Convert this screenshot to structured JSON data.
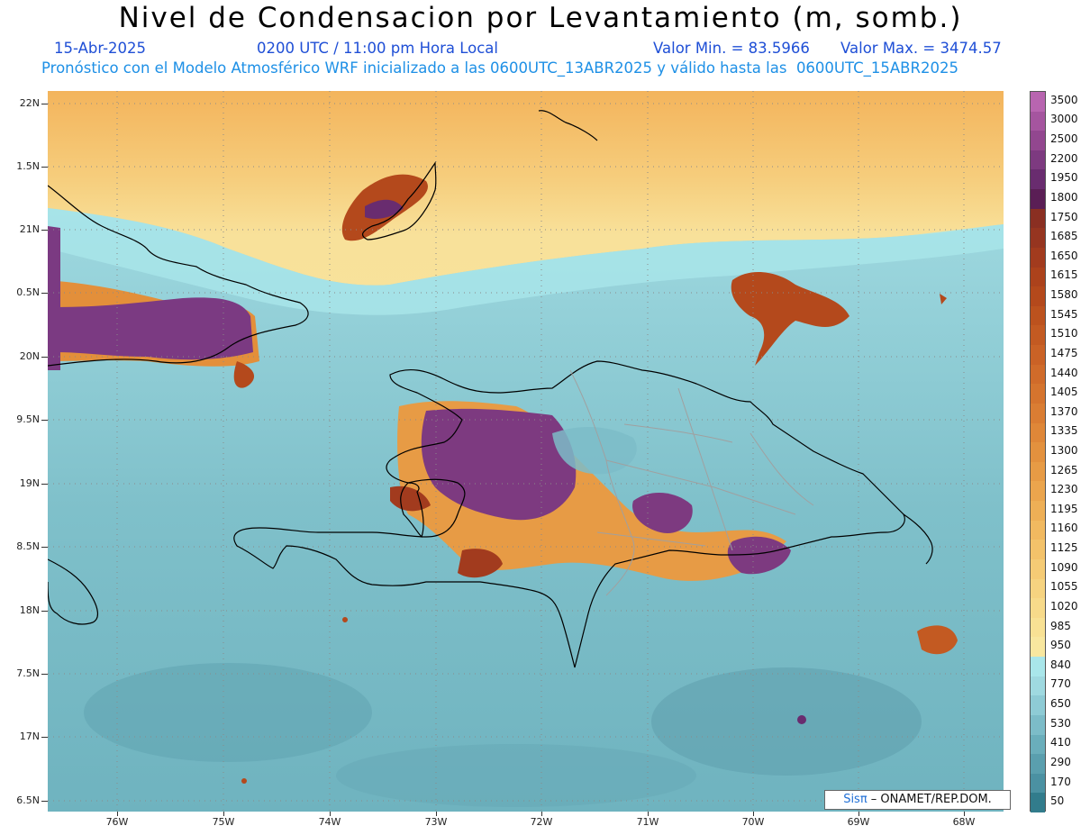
{
  "header": {
    "title": "Nivel de Condensacion por Levantamiento (m, somb.)",
    "date": "15-Abr-2025",
    "time": "0200 UTC / 11:00 pm Hora Local",
    "min_label": "Valor Min. = 83.5966",
    "max_label": "Valor Max. = 3474.57",
    "forecast_line": "Pronóstico con el Modelo Atmosférico WRF inicializado a las 0600UTC_13ABR2025 y válido hasta las  0600UTC_15ABR2025"
  },
  "lat_labels": [
    "22N",
    "1.5N",
    "21N",
    "0.5N",
    "20N",
    "9.5N",
    "19N",
    "8.5N",
    "18N",
    "7.5N",
    "17N",
    "6.5N"
  ],
  "lon_labels": [
    "76W",
    "75W",
    "74W",
    "73W",
    "72W",
    "71W",
    "70W",
    "69W",
    "68W"
  ],
  "colorbar": {
    "labels": [
      "3500",
      "3000",
      "2500",
      "2200",
      "1950",
      "1800",
      "1750",
      "1685",
      "1650",
      "1615",
      "1580",
      "1545",
      "1510",
      "1475",
      "1440",
      "1405",
      "1370",
      "1335",
      "1300",
      "1265",
      "1230",
      "1195",
      "1160",
      "1125",
      "1090",
      "1055",
      "1020",
      "985",
      "950",
      "840",
      "770",
      "650",
      "530",
      "410",
      "290",
      "170",
      "50"
    ],
    "colors": [
      "#b865b0",
      "#a5559f",
      "#92478f",
      "#7d3a80",
      "#692c6f",
      "#5a1e55",
      "#8a2f22",
      "#963520",
      "#a23b1e",
      "#ac421c",
      "#b4491c",
      "#bc521e",
      "#c35a22",
      "#ca6226",
      "#d06b2a",
      "#d5742e",
      "#da7d33",
      "#df8738",
      "#e3913e",
      "#e79b45",
      "#eba54d",
      "#eeaf56",
      "#f1b960",
      "#f3c26a",
      "#f5cb75",
      "#f6d380",
      "#f7da8a",
      "#f8e194",
      "#f8e79f",
      "#a9e6ea",
      "#9fd9e0",
      "#8ecbd5",
      "#7cbcc8",
      "#6aaebb",
      "#5a9fae",
      "#4b91a2",
      "#327c8c"
    ]
  },
  "credit": {
    "brand": "Sisπ",
    "text": " – ONAMET/REP.DOM."
  }
}
